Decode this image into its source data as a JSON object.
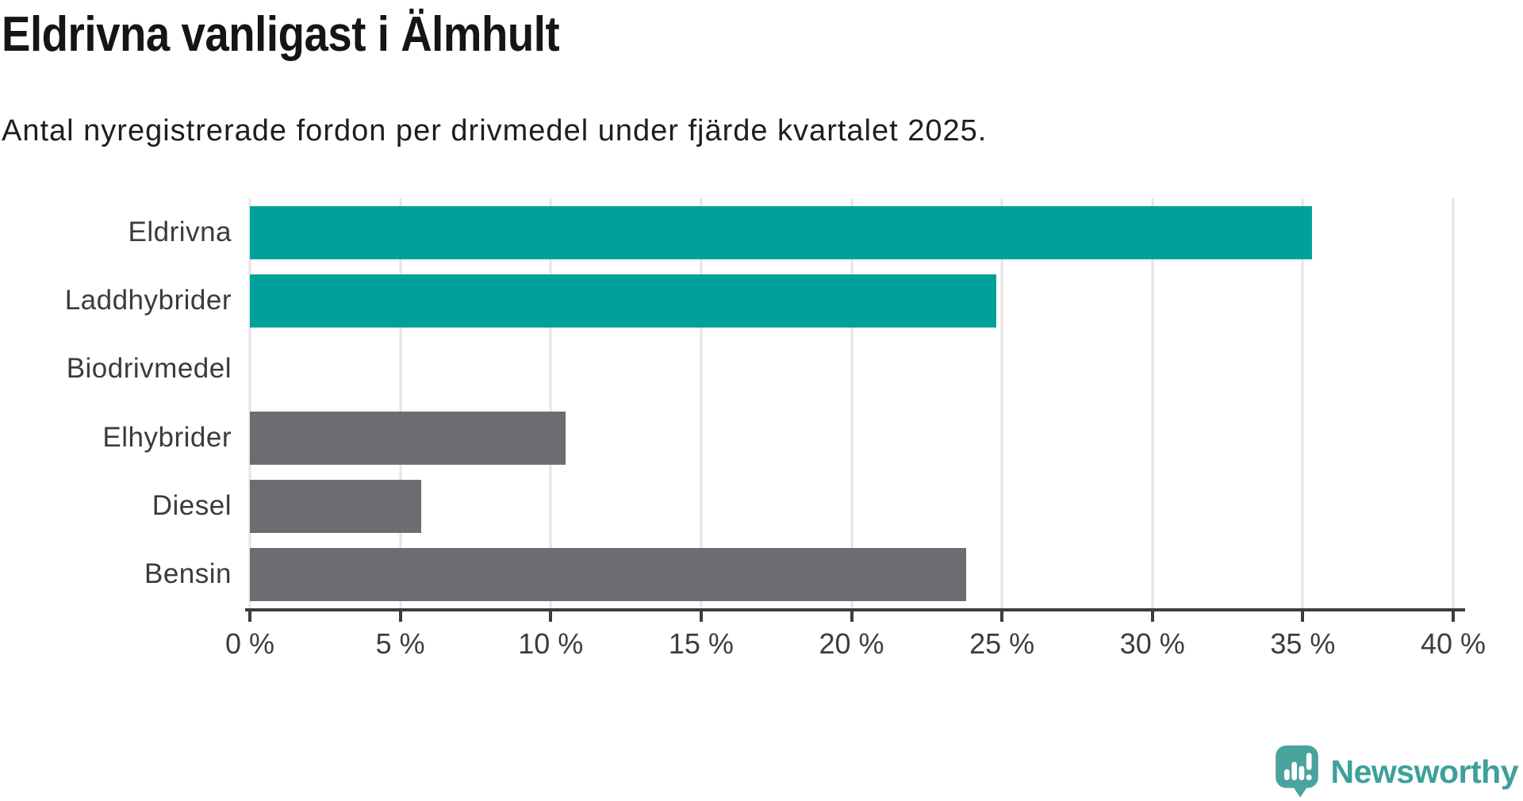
{
  "header": {
    "title": "Eldrivna vanligast i Älmhult",
    "subtitle": "Antal nyregistrerade fordon per drivmedel under fjärde kvartalet 2025."
  },
  "chart_data": {
    "type": "bar",
    "orientation": "horizontal",
    "title": "Eldrivna vanligast i Älmhult",
    "subtitle": "Antal nyregistrerade fordon per drivmedel under fjärde kvartalet 2025.",
    "categories": [
      "Eldrivna",
      "Laddhybrider",
      "Biodrivmedel",
      "Elhybrider",
      "Diesel",
      "Bensin"
    ],
    "values": [
      35.3,
      24.8,
      0,
      10.5,
      5.7,
      23.8
    ],
    "unit": "%",
    "xlabel": "",
    "ylabel": "",
    "xlim": [
      0,
      40
    ],
    "grid": true,
    "legend": false,
    "bar_colors": [
      "#00a19a",
      "#00a19a",
      "#00a19a",
      "#6c6c72",
      "#6c6c72",
      "#6c6c72"
    ],
    "xticks": [
      {
        "value": 0,
        "label": "0 %"
      },
      {
        "value": 5,
        "label": "5 %"
      },
      {
        "value": 10,
        "label": "10 %"
      },
      {
        "value": 15,
        "label": "15 %"
      },
      {
        "value": 20,
        "label": "20 %"
      },
      {
        "value": 25,
        "label": "25 %"
      },
      {
        "value": 30,
        "label": "30 %"
      },
      {
        "value": 35,
        "label": "35 %"
      },
      {
        "value": 40,
        "label": "40 %"
      }
    ]
  },
  "colors": {
    "accent_teal": "#00a19a",
    "neutral_gray": "#6c6c72",
    "gridline": "#e4e4e4",
    "axis": "#3c3c42",
    "logo_teal": "#4aa39c",
    "logo_text_teal": "#3da09a"
  },
  "footer": {
    "brand": "Newsworthy"
  }
}
